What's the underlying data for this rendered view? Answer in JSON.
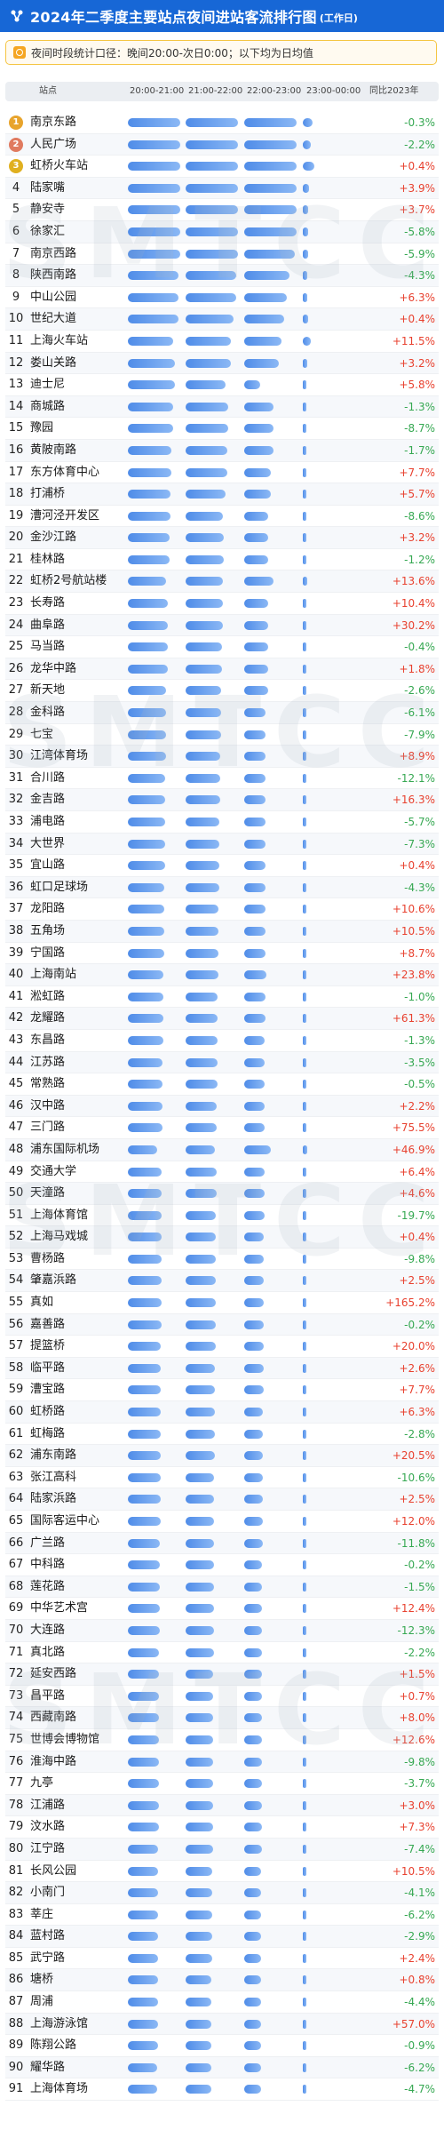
{
  "header": {
    "title": "2024年二季度主要站点夜间进站客流排行图",
    "subtitle": "(工作日)"
  },
  "note": {
    "text": "夜间时段统计口径：晚间20:00-次日0:00；以下均为日均值"
  },
  "watermark": "SMTCC",
  "colors": {
    "header": "#1767d6",
    "bar": "#5b94e9",
    "positive": "#e8412f",
    "negative": "#36a852",
    "gold": "#e8a42c",
    "silver": "#e07a5f",
    "bronze": "#e0b020"
  },
  "chart_data": {
    "type": "table",
    "columns": [
      "站点",
      "20:00-21:00",
      "21:00-22:00",
      "22:00-23:00",
      "23:00-00:00",
      "同比2023年"
    ],
    "rows": [
      {
        "rank": 1,
        "station": "南京东路",
        "bars": [
          0.98,
          0.98,
          0.98,
          0.18
        ],
        "yoy": "-0.3%"
      },
      {
        "rank": 2,
        "station": "人民广场",
        "bars": [
          0.98,
          0.98,
          0.98,
          0.15
        ],
        "yoy": "-2.2%"
      },
      {
        "rank": 3,
        "station": "虹桥火车站",
        "bars": [
          0.98,
          0.98,
          0.98,
          0.22
        ],
        "yoy": "+0.4%"
      },
      {
        "rank": 4,
        "station": "陆家嘴",
        "bars": [
          0.98,
          0.98,
          0.98,
          0.12
        ],
        "yoy": "+3.9%"
      },
      {
        "rank": 5,
        "station": "静安寺",
        "bars": [
          0.98,
          0.98,
          0.98,
          0.1
        ],
        "yoy": "+3.7%"
      },
      {
        "rank": 6,
        "station": "徐家汇",
        "bars": [
          0.98,
          0.98,
          0.98,
          0.1
        ],
        "yoy": "-5.8%"
      },
      {
        "rank": 7,
        "station": "南京西路",
        "bars": [
          0.98,
          0.98,
          0.95,
          0.1
        ],
        "yoy": "-5.9%"
      },
      {
        "rank": 8,
        "station": "陕西南路",
        "bars": [
          0.95,
          0.95,
          0.85,
          0.08
        ],
        "yoy": "-4.3%"
      },
      {
        "rank": 9,
        "station": "中山公园",
        "bars": [
          0.95,
          0.95,
          0.8,
          0.08
        ],
        "yoy": "+6.3%"
      },
      {
        "rank": 10,
        "station": "世纪大道",
        "bars": [
          0.95,
          0.9,
          0.75,
          0.1
        ],
        "yoy": "+0.4%"
      },
      {
        "rank": 11,
        "station": "上海火车站",
        "bars": [
          0.85,
          0.85,
          0.7,
          0.15
        ],
        "yoy": "+11.5%"
      },
      {
        "rank": 12,
        "station": "娄山关路",
        "bars": [
          0.88,
          0.85,
          0.65,
          0.08
        ],
        "yoy": "+3.2%"
      },
      {
        "rank": 13,
        "station": "迪士尼",
        "bars": [
          0.88,
          0.75,
          0.3,
          0.05
        ],
        "yoy": "+5.8%"
      },
      {
        "rank": 14,
        "station": "商城路",
        "bars": [
          0.85,
          0.8,
          0.55,
          0.06
        ],
        "yoy": "-1.3%"
      },
      {
        "rank": 15,
        "station": "豫园",
        "bars": [
          0.85,
          0.8,
          0.55,
          0.06
        ],
        "yoy": "-8.7%"
      },
      {
        "rank": 16,
        "station": "黄陂南路",
        "bars": [
          0.82,
          0.78,
          0.55,
          0.06
        ],
        "yoy": "-1.7%"
      },
      {
        "rank": 17,
        "station": "东方体育中心",
        "bars": [
          0.82,
          0.78,
          0.5,
          0.06
        ],
        "yoy": "+7.7%"
      },
      {
        "rank": 18,
        "station": "打浦桥",
        "bars": [
          0.8,
          0.75,
          0.5,
          0.05
        ],
        "yoy": "+5.7%"
      },
      {
        "rank": 19,
        "station": "漕河泾开发区",
        "bars": [
          0.8,
          0.7,
          0.45,
          0.05
        ],
        "yoy": "-8.6%"
      },
      {
        "rank": 20,
        "station": "金沙江路",
        "bars": [
          0.78,
          0.72,
          0.45,
          0.05
        ],
        "yoy": "+3.2%"
      },
      {
        "rank": 21,
        "station": "桂林路",
        "bars": [
          0.78,
          0.72,
          0.45,
          0.05
        ],
        "yoy": "-1.2%"
      },
      {
        "rank": 22,
        "station": "虹桥2号航站楼",
        "bars": [
          0.72,
          0.7,
          0.55,
          0.08
        ],
        "yoy": "+13.6%"
      },
      {
        "rank": 23,
        "station": "长寿路",
        "bars": [
          0.75,
          0.7,
          0.45,
          0.05
        ],
        "yoy": "+10.4%"
      },
      {
        "rank": 24,
        "station": "曲阜路",
        "bars": [
          0.75,
          0.7,
          0.45,
          0.05
        ],
        "yoy": "+30.2%"
      },
      {
        "rank": 25,
        "station": "马当路",
        "bars": [
          0.75,
          0.68,
          0.45,
          0.05
        ],
        "yoy": "-0.4%"
      },
      {
        "rank": 26,
        "station": "龙华中路",
        "bars": [
          0.75,
          0.68,
          0.45,
          0.05
        ],
        "yoy": "+1.8%"
      },
      {
        "rank": 27,
        "station": "新天地",
        "bars": [
          0.72,
          0.66,
          0.45,
          0.05
        ],
        "yoy": "-2.6%"
      },
      {
        "rank": 28,
        "station": "金科路",
        "bars": [
          0.72,
          0.66,
          0.4,
          0.05
        ],
        "yoy": "-6.1%"
      },
      {
        "rank": 29,
        "station": "七宝",
        "bars": [
          0.72,
          0.66,
          0.4,
          0.05
        ],
        "yoy": "-7.9%"
      },
      {
        "rank": 30,
        "station": "江湾体育场",
        "bars": [
          0.72,
          0.65,
          0.4,
          0.05
        ],
        "yoy": "+8.9%"
      },
      {
        "rank": 31,
        "station": "合川路",
        "bars": [
          0.7,
          0.65,
          0.4,
          0.05
        ],
        "yoy": "-12.1%"
      },
      {
        "rank": 32,
        "station": "金吉路",
        "bars": [
          0.7,
          0.65,
          0.4,
          0.05
        ],
        "yoy": "+16.3%"
      },
      {
        "rank": 33,
        "station": "浦电路",
        "bars": [
          0.7,
          0.64,
          0.4,
          0.05
        ],
        "yoy": "-5.7%"
      },
      {
        "rank": 34,
        "station": "大世界",
        "bars": [
          0.7,
          0.64,
          0.4,
          0.05
        ],
        "yoy": "-7.3%"
      },
      {
        "rank": 35,
        "station": "宜山路",
        "bars": [
          0.7,
          0.63,
          0.4,
          0.05
        ],
        "yoy": "+0.4%"
      },
      {
        "rank": 36,
        "station": "虹口足球场",
        "bars": [
          0.68,
          0.63,
          0.4,
          0.05
        ],
        "yoy": "-4.3%"
      },
      {
        "rank": 37,
        "station": "龙阳路",
        "bars": [
          0.68,
          0.62,
          0.4,
          0.05
        ],
        "yoy": "+10.6%"
      },
      {
        "rank": 38,
        "station": "五角场",
        "bars": [
          0.68,
          0.62,
          0.4,
          0.05
        ],
        "yoy": "+10.5%"
      },
      {
        "rank": 39,
        "station": "宁国路",
        "bars": [
          0.68,
          0.62,
          0.4,
          0.05
        ],
        "yoy": "+8.7%"
      },
      {
        "rank": 40,
        "station": "上海南站",
        "bars": [
          0.66,
          0.62,
          0.42,
          0.05
        ],
        "yoy": "+23.8%"
      },
      {
        "rank": 41,
        "station": "淞虹路",
        "bars": [
          0.66,
          0.6,
          0.4,
          0.05
        ],
        "yoy": "-1.0%"
      },
      {
        "rank": 42,
        "station": "龙耀路",
        "bars": [
          0.66,
          0.6,
          0.4,
          0.05
        ],
        "yoy": "+61.3%"
      },
      {
        "rank": 43,
        "station": "东昌路",
        "bars": [
          0.66,
          0.6,
          0.38,
          0.05
        ],
        "yoy": "-1.3%"
      },
      {
        "rank": 44,
        "station": "江苏路",
        "bars": [
          0.65,
          0.6,
          0.38,
          0.05
        ],
        "yoy": "-3.5%"
      },
      {
        "rank": 45,
        "station": "常熟路",
        "bars": [
          0.65,
          0.6,
          0.38,
          0.05
        ],
        "yoy": "-0.5%"
      },
      {
        "rank": 46,
        "station": "汉中路",
        "bars": [
          0.65,
          0.58,
          0.38,
          0.05
        ],
        "yoy": "+2.2%"
      },
      {
        "rank": 47,
        "station": "三门路",
        "bars": [
          0.65,
          0.58,
          0.38,
          0.05
        ],
        "yoy": "+75.5%"
      },
      {
        "rank": 48,
        "station": "浦东国际机场",
        "bars": [
          0.55,
          0.55,
          0.5,
          0.08
        ],
        "yoy": "+46.9%"
      },
      {
        "rank": 49,
        "station": "交通大学",
        "bars": [
          0.64,
          0.58,
          0.38,
          0.05
        ],
        "yoy": "+6.4%"
      },
      {
        "rank": 50,
        "station": "天潼路",
        "bars": [
          0.64,
          0.58,
          0.38,
          0.05
        ],
        "yoy": "+4.6%"
      },
      {
        "rank": 51,
        "station": "上海体育馆",
        "bars": [
          0.64,
          0.57,
          0.38,
          0.05
        ],
        "yoy": "-19.7%"
      },
      {
        "rank": 52,
        "station": "上海马戏城",
        "bars": [
          0.64,
          0.57,
          0.36,
          0.05
        ],
        "yoy": "+0.4%"
      },
      {
        "rank": 53,
        "station": "曹杨路",
        "bars": [
          0.63,
          0.57,
          0.36,
          0.05
        ],
        "yoy": "-9.8%"
      },
      {
        "rank": 54,
        "station": "肇嘉浜路",
        "bars": [
          0.63,
          0.56,
          0.36,
          0.05
        ],
        "yoy": "+2.5%"
      },
      {
        "rank": 55,
        "station": "真如",
        "bars": [
          0.63,
          0.56,
          0.36,
          0.05
        ],
        "yoy": "+165.2%"
      },
      {
        "rank": 56,
        "station": "嘉善路",
        "bars": [
          0.63,
          0.56,
          0.36,
          0.05
        ],
        "yoy": "-0.2%"
      },
      {
        "rank": 57,
        "station": "提篮桥",
        "bars": [
          0.62,
          0.56,
          0.36,
          0.05
        ],
        "yoy": "+20.0%"
      },
      {
        "rank": 58,
        "station": "临平路",
        "bars": [
          0.62,
          0.55,
          0.36,
          0.05
        ],
        "yoy": "+2.6%"
      },
      {
        "rank": 59,
        "station": "漕宝路",
        "bars": [
          0.62,
          0.55,
          0.36,
          0.05
        ],
        "yoy": "+7.7%"
      },
      {
        "rank": 60,
        "station": "虹桥路",
        "bars": [
          0.62,
          0.55,
          0.35,
          0.05
        ],
        "yoy": "+6.3%"
      },
      {
        "rank": 61,
        "station": "虹梅路",
        "bars": [
          0.62,
          0.55,
          0.35,
          0.05
        ],
        "yoy": "-2.8%"
      },
      {
        "rank": 62,
        "station": "浦东南路",
        "bars": [
          0.61,
          0.55,
          0.35,
          0.05
        ],
        "yoy": "+20.5%"
      },
      {
        "rank": 63,
        "station": "张江高科",
        "bars": [
          0.61,
          0.54,
          0.35,
          0.05
        ],
        "yoy": "-10.6%"
      },
      {
        "rank": 64,
        "station": "陆家浜路",
        "bars": [
          0.61,
          0.54,
          0.35,
          0.05
        ],
        "yoy": "+2.5%"
      },
      {
        "rank": 65,
        "station": "国际客运中心",
        "bars": [
          0.61,
          0.54,
          0.35,
          0.05
        ],
        "yoy": "+12.0%"
      },
      {
        "rank": 66,
        "station": "广兰路",
        "bars": [
          0.6,
          0.54,
          0.35,
          0.05
        ],
        "yoy": "-11.8%"
      },
      {
        "rank": 67,
        "station": "中科路",
        "bars": [
          0.6,
          0.54,
          0.34,
          0.05
        ],
        "yoy": "-0.2%"
      },
      {
        "rank": 68,
        "station": "莲花路",
        "bars": [
          0.6,
          0.53,
          0.34,
          0.05
        ],
        "yoy": "-1.5%"
      },
      {
        "rank": 69,
        "station": "中华艺术宫",
        "bars": [
          0.6,
          0.53,
          0.34,
          0.05
        ],
        "yoy": "+12.4%"
      },
      {
        "rank": 70,
        "station": "大连路",
        "bars": [
          0.6,
          0.53,
          0.34,
          0.05
        ],
        "yoy": "-12.3%"
      },
      {
        "rank": 71,
        "station": "真北路",
        "bars": [
          0.59,
          0.53,
          0.34,
          0.05
        ],
        "yoy": "-2.2%"
      },
      {
        "rank": 72,
        "station": "延安西路",
        "bars": [
          0.59,
          0.52,
          0.34,
          0.05
        ],
        "yoy": "+1.5%"
      },
      {
        "rank": 73,
        "station": "昌平路",
        "bars": [
          0.59,
          0.52,
          0.34,
          0.05
        ],
        "yoy": "+0.7%"
      },
      {
        "rank": 74,
        "station": "西藏南路",
        "bars": [
          0.59,
          0.52,
          0.33,
          0.05
        ],
        "yoy": "+8.0%"
      },
      {
        "rank": 75,
        "station": "世博会博物馆",
        "bars": [
          0.58,
          0.52,
          0.33,
          0.05
        ],
        "yoy": "+12.6%"
      },
      {
        "rank": 76,
        "station": "淮海中路",
        "bars": [
          0.58,
          0.52,
          0.33,
          0.05
        ],
        "yoy": "-9.8%"
      },
      {
        "rank": 77,
        "station": "九亭",
        "bars": [
          0.58,
          0.51,
          0.33,
          0.05
        ],
        "yoy": "-3.7%"
      },
      {
        "rank": 78,
        "station": "江浦路",
        "bars": [
          0.58,
          0.51,
          0.33,
          0.05
        ],
        "yoy": "+3.0%"
      },
      {
        "rank": 79,
        "station": "汶水路",
        "bars": [
          0.58,
          0.51,
          0.33,
          0.05
        ],
        "yoy": "+7.3%"
      },
      {
        "rank": 80,
        "station": "江宁路",
        "bars": [
          0.57,
          0.51,
          0.33,
          0.05
        ],
        "yoy": "-7.4%"
      },
      {
        "rank": 81,
        "station": "长风公园",
        "bars": [
          0.57,
          0.5,
          0.32,
          0.05
        ],
        "yoy": "+10.5%"
      },
      {
        "rank": 82,
        "station": "小南门",
        "bars": [
          0.57,
          0.5,
          0.32,
          0.05
        ],
        "yoy": "-4.1%"
      },
      {
        "rank": 83,
        "station": "莘庄",
        "bars": [
          0.57,
          0.5,
          0.32,
          0.05
        ],
        "yoy": "-6.2%"
      },
      {
        "rank": 84,
        "station": "蓝村路",
        "bars": [
          0.57,
          0.5,
          0.32,
          0.05
        ],
        "yoy": "-2.9%"
      },
      {
        "rank": 85,
        "station": "武宁路",
        "bars": [
          0.56,
          0.5,
          0.32,
          0.05
        ],
        "yoy": "+2.4%"
      },
      {
        "rank": 86,
        "station": "塘桥",
        "bars": [
          0.56,
          0.49,
          0.32,
          0.05
        ],
        "yoy": "+0.8%"
      },
      {
        "rank": 87,
        "station": "周浦",
        "bars": [
          0.56,
          0.49,
          0.32,
          0.05
        ],
        "yoy": "-4.4%"
      },
      {
        "rank": 88,
        "station": "上海游泳馆",
        "bars": [
          0.56,
          0.49,
          0.32,
          0.05
        ],
        "yoy": "+57.0%"
      },
      {
        "rank": 89,
        "station": "陈翔公路",
        "bars": [
          0.56,
          0.49,
          0.31,
          0.05
        ],
        "yoy": "-0.9%"
      },
      {
        "rank": 90,
        "station": "耀华路",
        "bars": [
          0.55,
          0.49,
          0.31,
          0.05
        ],
        "yoy": "-6.2%"
      },
      {
        "rank": 91,
        "station": "上海体育场",
        "bars": [
          0.55,
          0.48,
          0.31,
          0.05
        ],
        "yoy": "-4.7%"
      }
    ]
  }
}
